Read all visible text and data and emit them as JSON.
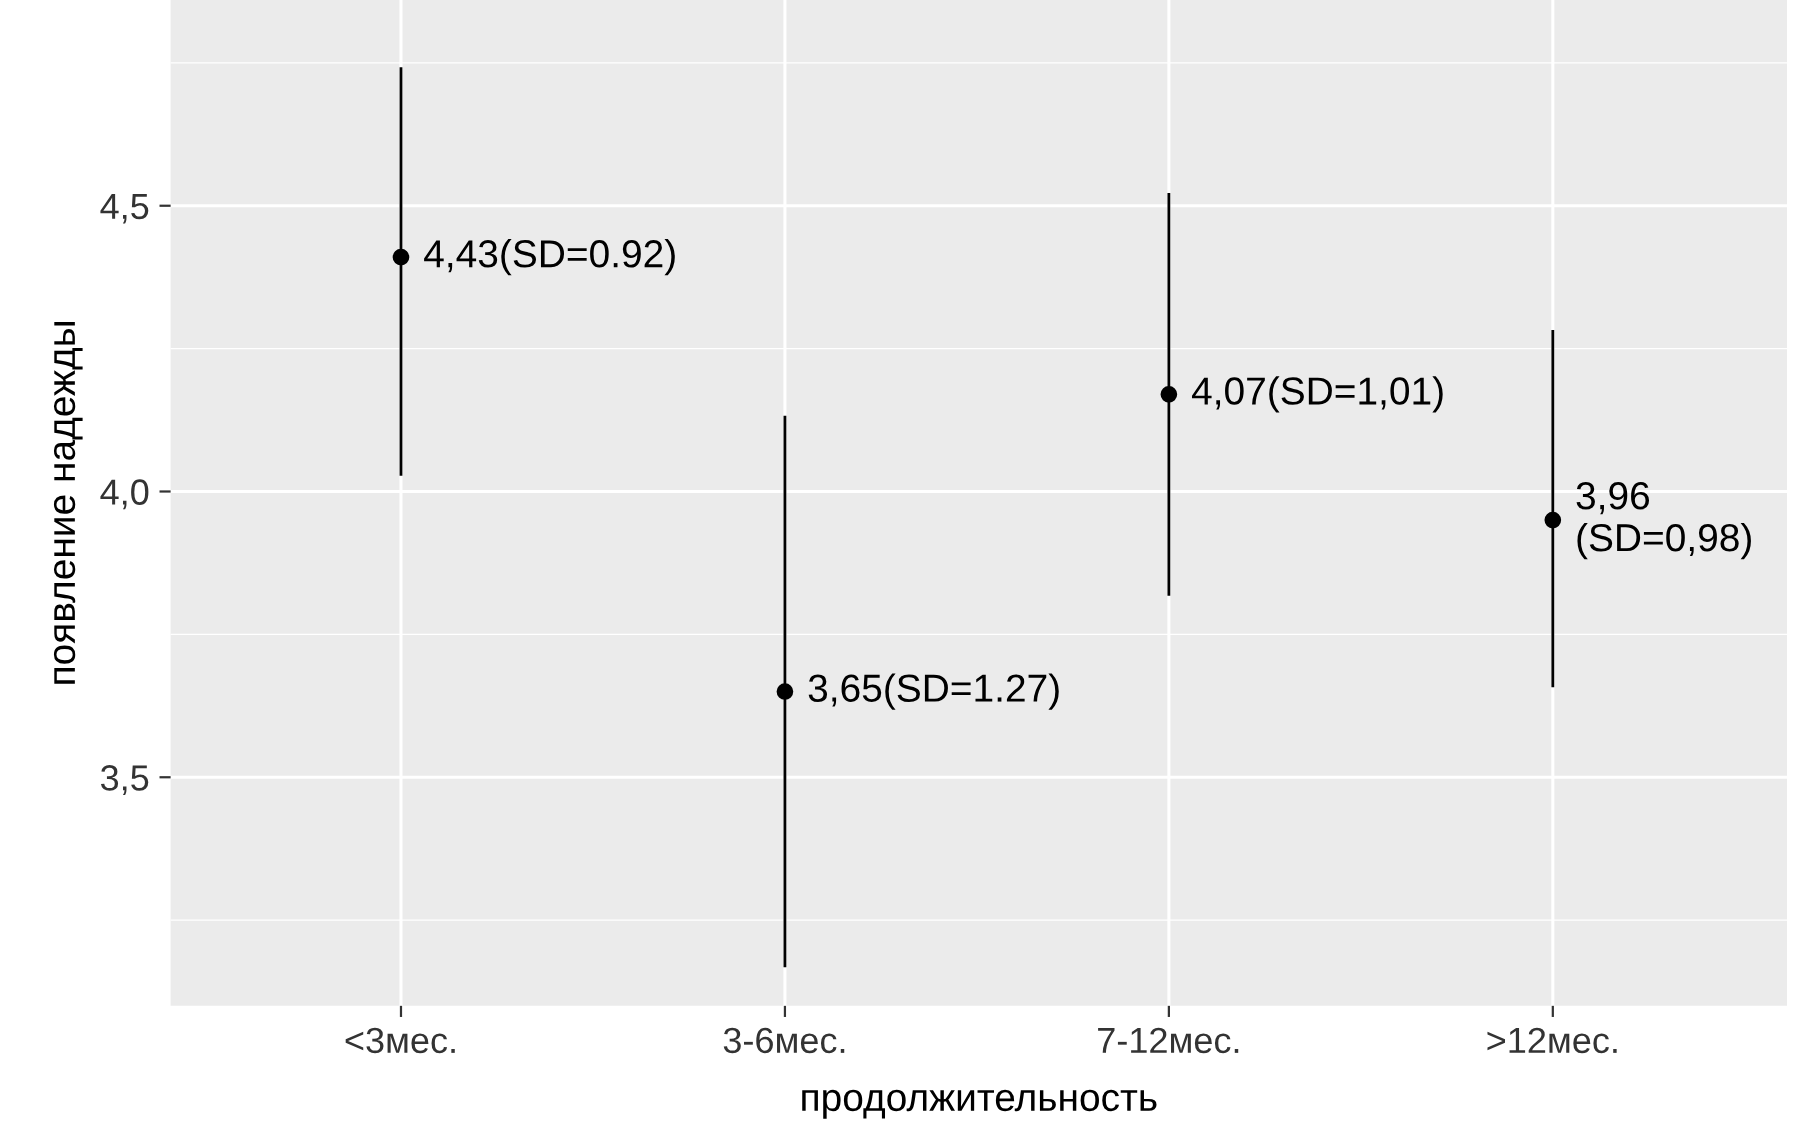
{
  "chart_data": {
    "type": "scatter",
    "xlabel": "продолжительность",
    "ylabel": "появление надежды",
    "categories": [
      "<3мес.",
      "3-6мес.",
      "7-12мес.",
      ">12мес."
    ],
    "series": [
      {
        "color": "#000000",
        "values": [
          4.41,
          3.65,
          4.17,
          3.95
        ],
        "errors": [
          [
            4.03,
            4.74
          ],
          [
            3.17,
            4.13
          ],
          [
            3.82,
            4.52
          ],
          [
            3.66,
            4.28
          ]
        ]
      }
    ],
    "ylim": [
      3.1,
      4.86
    ],
    "yticks": [
      {
        "value": 3.25,
        "label": null
      },
      {
        "value": 3.5,
        "label": "3,5"
      },
      {
        "value": 3.75,
        "label": null
      },
      {
        "value": 4.0,
        "label": "4,0"
      },
      {
        "value": 4.25,
        "label": null
      },
      {
        "value": 4.5,
        "label": "4,5"
      },
      {
        "value": 4.75,
        "label": null
      }
    ],
    "annotations": [
      {
        "text": "4,43(SD=0.92)",
        "x": "<3мес.",
        "y": 4.41
      },
      {
        "text": "3,65(SD=1.27)",
        "x": "3-6мес.",
        "y": 3.65
      },
      {
        "text": "4,07(SD=1,01)",
        "x": "7-12мес.",
        "y": 4.17
      },
      {
        "text": "3,96\n(SD=0,98)",
        "x": ">12мес.",
        "y": 3.95
      }
    ],
    "grid": true,
    "marker": "circle",
    "legend": false
  }
}
